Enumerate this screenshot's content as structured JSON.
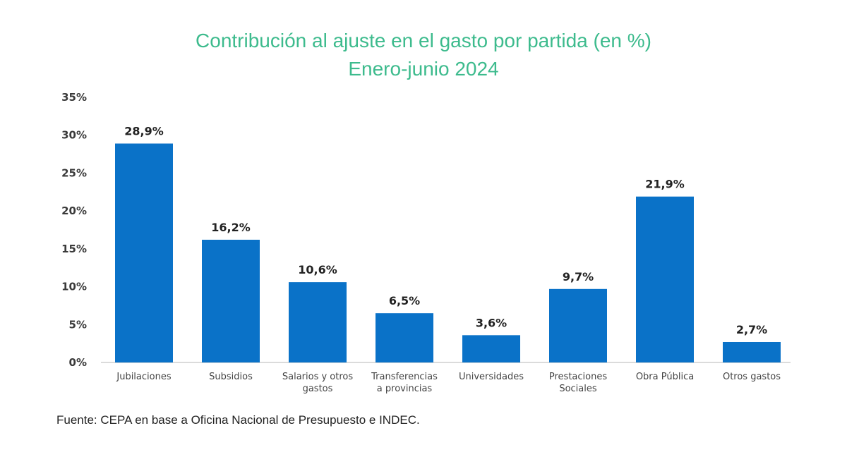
{
  "chart_data": {
    "type": "bar",
    "title": "Contribución al ajuste en el gasto por partida (en %)",
    "subtitle": "Enero-junio 2024",
    "xlabel": "",
    "ylabel": "",
    "ylim": [
      0,
      35
    ],
    "yticks": [
      0,
      5,
      10,
      15,
      20,
      25,
      30,
      35
    ],
    "ytick_labels": [
      "0%",
      "5%",
      "10%",
      "15%",
      "20%",
      "25%",
      "30%",
      "35%"
    ],
    "grid": false,
    "categories": [
      [
        "Jubilaciones"
      ],
      [
        "Subsidios"
      ],
      [
        "Salarios y otros",
        "gastos"
      ],
      [
        "Transferencias",
        "a provincias"
      ],
      [
        "Universidades"
      ],
      [
        "Prestaciones",
        "Sociales"
      ],
      [
        "Obra Pública"
      ],
      [
        "Otros gastos"
      ]
    ],
    "values": [
      28.9,
      16.2,
      10.6,
      6.5,
      3.6,
      9.7,
      21.9,
      2.7
    ],
    "data_labels": [
      "28,9%",
      "16,2%",
      "10,6%",
      "6,5%",
      "3,6%",
      "9,7%",
      "21,9%",
      "2,7%"
    ],
    "bar_color": "#0a72c8",
    "title_color": "#3dbb8d",
    "source": "Fuente: CEPA en base a Oficina Nacional de Presupuesto e INDEC."
  }
}
